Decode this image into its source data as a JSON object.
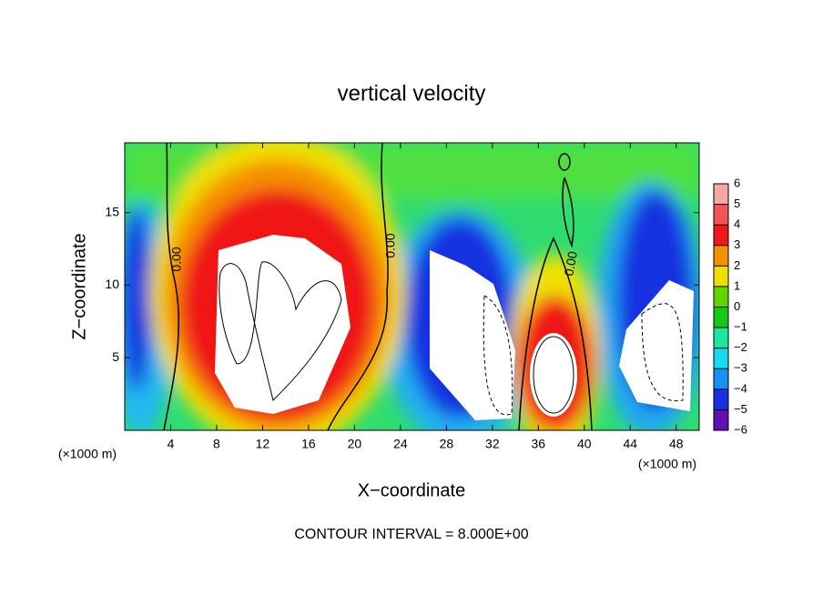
{
  "chart_data": {
    "type": "contour",
    "title": "vertical velocity",
    "xlabel": "X−coordinate",
    "ylabel": "Z−coordinate",
    "xunit": "(×1000 m)",
    "yunit": "(×1000 m)",
    "xlim": [
      0,
      50
    ],
    "xticks": [
      4,
      8,
      12,
      16,
      20,
      24,
      28,
      32,
      36,
      40,
      44,
      48
    ],
    "ylim": [
      0,
      19.8
    ],
    "yticks": [
      5,
      10,
      15
    ],
    "colorbar": {
      "lim": [
        -6,
        6
      ],
      "ticks": [
        6,
        5,
        4,
        3,
        2,
        1,
        0,
        {
          "value": -1,
          "label": "−1"
        },
        {
          "value": -2,
          "label": "−2"
        },
        {
          "value": -3,
          "label": "−3"
        },
        {
          "value": -4,
          "label": "−4"
        },
        {
          "value": -5,
          "label": "−5"
        },
        {
          "value": -6,
          "label": "−6"
        }
      ],
      "colors": [
        "#f7a6a6",
        "#f25555",
        "#f01818",
        "#f59000",
        "#f0e000",
        "#60d800",
        "#18c818",
        "#18e8a0",
        "#18d8f0",
        "#1890f0",
        "#1830e0",
        "#6010b0"
      ]
    },
    "contour_labels": [
      "0.00",
      "0.00",
      "0.00"
    ],
    "footnote": "CONTOUR INTERVAL = 8.000E+00"
  }
}
